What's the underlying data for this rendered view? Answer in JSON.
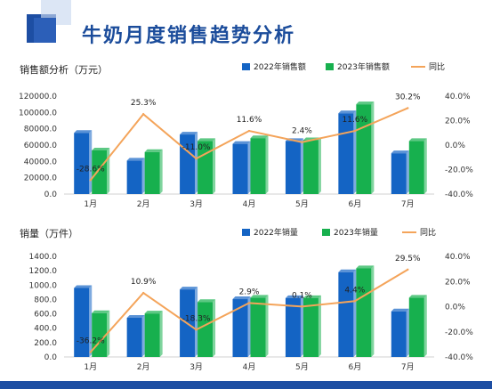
{
  "page": {
    "title": "牛奶月度销售趋势分析",
    "colors": {
      "title": "#1b4c9b",
      "bar2022": "#1464c4",
      "bar2023": "#17b04e",
      "yoy_line": "#f4a45a",
      "band": "#1d4ea3"
    }
  },
  "chart_data": [
    {
      "type": "bar",
      "title": "销售额分析（万元）",
      "categories": [
        "1月",
        "2月",
        "3月",
        "4月",
        "5月",
        "6月",
        "7月"
      ],
      "series": [
        {
          "name": "2022年销售额",
          "kind": "bar",
          "axis": "left",
          "color": "#1464c4",
          "values": [
            75000,
            41000,
            73000,
            61500,
            65000,
            99000,
            50000
          ]
        },
        {
          "name": "2023年销售额",
          "kind": "bar",
          "axis": "left",
          "color": "#17b04e",
          "values": [
            53500,
            51500,
            65000,
            68500,
            66000,
            110000,
            65000
          ]
        },
        {
          "name": "同比",
          "kind": "line",
          "axis": "right",
          "color": "#f4a45a",
          "values": [
            -28.6,
            25.3,
            -11.0,
            11.6,
            2.4,
            11.6,
            30.2
          ],
          "labels": [
            "-28.6%",
            "25.3%",
            "-11.0%",
            "11.6%",
            "2.4%",
            "11.6%",
            "30.2%"
          ]
        }
      ],
      "y_left": {
        "min": 0,
        "max": 120000,
        "step": 20000,
        "tick_labels": [
          "0.0",
          "20000.0",
          "40000.0",
          "60000.0",
          "80000.0",
          "100000.0",
          "120000.0"
        ]
      },
      "y_right": {
        "min": -40,
        "max": 40,
        "step": 20,
        "tick_labels": [
          "-40.0%",
          "-20.0%",
          "0.0%",
          "20.0%",
          "40.0%"
        ]
      },
      "legend": "top-right",
      "grid": false
    },
    {
      "type": "bar",
      "title": "销量（万件）",
      "categories": [
        "1月",
        "2月",
        "3月",
        "4月",
        "5月",
        "6月",
        "7月"
      ],
      "series": [
        {
          "name": "2022年销量",
          "kind": "bar",
          "axis": "left",
          "color": "#1464c4",
          "values": [
            960,
            545,
            940,
            805,
            820,
            1180,
            635
          ]
        },
        {
          "name": "2023年销量",
          "kind": "bar",
          "axis": "left",
          "color": "#17b04e",
          "values": [
            610,
            605,
            765,
            825,
            820,
            1235,
            825
          ]
        },
        {
          "name": "同比",
          "kind": "line",
          "axis": "right",
          "color": "#f4a45a",
          "values": [
            -36.2,
            10.9,
            -18.3,
            2.9,
            0.1,
            4.4,
            29.5
          ],
          "labels": [
            "-36.2%",
            "10.9%",
            "-18.3%",
            "2.9%",
            "0.1%",
            "4.4%",
            "29.5%"
          ]
        }
      ],
      "y_left": {
        "min": 0,
        "max": 1400,
        "step": 200,
        "tick_labels": [
          "0.0",
          "200.0",
          "400.0",
          "600.0",
          "800.0",
          "1000.0",
          "1200.0",
          "1400.0"
        ]
      },
      "y_right": {
        "min": -40,
        "max": 40,
        "step": 20,
        "tick_labels": [
          "-40.0%",
          "-20.0%",
          "0.0%",
          "20.0%",
          "40.0%"
        ]
      },
      "legend": "top-right",
      "grid": false
    }
  ]
}
